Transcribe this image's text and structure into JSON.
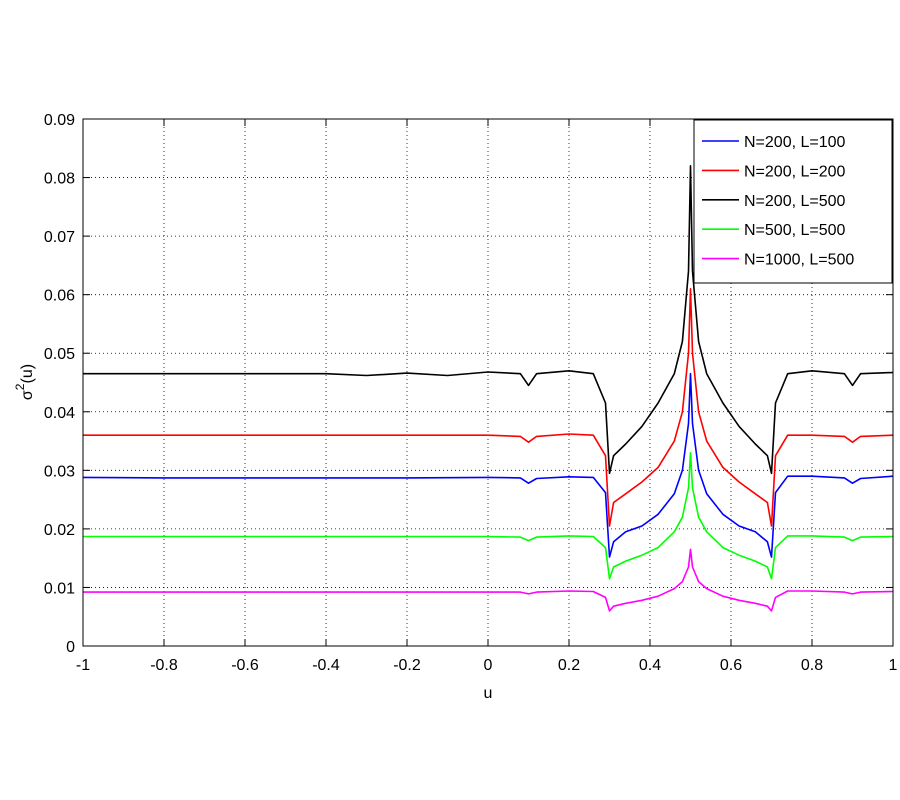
{
  "chart_data": {
    "type": "line",
    "xlabel": "u",
    "ylabel_base": "σ",
    "ylabel_sup": "2",
    "ylabel_rest": "(u)",
    "xlim": [
      -1,
      1
    ],
    "ylim": [
      0,
      0.09
    ],
    "grid": true,
    "legend_position": "top-right",
    "x_ticks": [
      "-1",
      "-0.8",
      "-0.6",
      "-0.4",
      "-0.2",
      "0",
      "0.2",
      "0.4",
      "0.6",
      "0.8",
      "1"
    ],
    "y_ticks": [
      "0",
      "0.01",
      "0.02",
      "0.03",
      "0.04",
      "0.05",
      "0.06",
      "0.07",
      "0.08",
      "0.09"
    ],
    "series": [
      {
        "name": "N=200, L=100",
        "color": "#0000ff",
        "x": [
          -1,
          -0.8,
          -0.6,
          -0.4,
          -0.2,
          0,
          0.08,
          0.1,
          0.12,
          0.2,
          0.26,
          0.29,
          0.3,
          0.31,
          0.34,
          0.38,
          0.42,
          0.46,
          0.48,
          0.495,
          0.5,
          0.505,
          0.52,
          0.54,
          0.58,
          0.62,
          0.66,
          0.69,
          0.7,
          0.71,
          0.74,
          0.8,
          0.88,
          0.9,
          0.92,
          1
        ],
        "y": [
          0.0288,
          0.0287,
          0.0287,
          0.0287,
          0.0287,
          0.0288,
          0.0287,
          0.0278,
          0.0286,
          0.0289,
          0.0288,
          0.0262,
          0.0152,
          0.0178,
          0.0195,
          0.0205,
          0.0225,
          0.026,
          0.03,
          0.038,
          0.0465,
          0.038,
          0.03,
          0.026,
          0.0225,
          0.0205,
          0.0195,
          0.0178,
          0.0152,
          0.0262,
          0.029,
          0.029,
          0.0287,
          0.0278,
          0.0286,
          0.029
        ]
      },
      {
        "name": "N=200, L=200",
        "color": "#ff0000",
        "x": [
          -1,
          -0.8,
          -0.6,
          -0.4,
          -0.2,
          0,
          0.08,
          0.1,
          0.12,
          0.2,
          0.26,
          0.29,
          0.3,
          0.31,
          0.34,
          0.38,
          0.42,
          0.46,
          0.48,
          0.495,
          0.5,
          0.505,
          0.52,
          0.54,
          0.58,
          0.62,
          0.66,
          0.69,
          0.7,
          0.71,
          0.74,
          0.8,
          0.88,
          0.9,
          0.92,
          1
        ],
        "y": [
          0.036,
          0.036,
          0.036,
          0.036,
          0.036,
          0.036,
          0.0358,
          0.0348,
          0.0358,
          0.0362,
          0.036,
          0.0325,
          0.0205,
          0.0245,
          0.026,
          0.028,
          0.0305,
          0.035,
          0.04,
          0.05,
          0.061,
          0.05,
          0.04,
          0.035,
          0.0305,
          0.028,
          0.026,
          0.0245,
          0.0205,
          0.0325,
          0.036,
          0.036,
          0.0358,
          0.0348,
          0.0358,
          0.036
        ]
      },
      {
        "name": "N=200, L=500",
        "color": "#000000",
        "x": [
          -1,
          -0.8,
          -0.6,
          -0.4,
          -0.3,
          -0.2,
          -0.1,
          0,
          0.08,
          0.1,
          0.12,
          0.2,
          0.26,
          0.29,
          0.3,
          0.31,
          0.34,
          0.38,
          0.42,
          0.46,
          0.48,
          0.495,
          0.5,
          0.505,
          0.52,
          0.54,
          0.58,
          0.62,
          0.66,
          0.69,
          0.7,
          0.71,
          0.74,
          0.8,
          0.88,
          0.9,
          0.92,
          1
        ],
        "y": [
          0.0465,
          0.0465,
          0.0465,
          0.0465,
          0.0462,
          0.0466,
          0.0462,
          0.0468,
          0.0465,
          0.0445,
          0.0465,
          0.047,
          0.0465,
          0.0415,
          0.0295,
          0.0325,
          0.0345,
          0.0375,
          0.0415,
          0.0465,
          0.052,
          0.064,
          0.082,
          0.064,
          0.052,
          0.0465,
          0.0415,
          0.0375,
          0.0345,
          0.0325,
          0.0295,
          0.0415,
          0.0465,
          0.047,
          0.0465,
          0.0445,
          0.0465,
          0.0467
        ]
      },
      {
        "name": "N=500, L=500",
        "color": "#00ff00",
        "x": [
          -1,
          -0.8,
          -0.6,
          -0.4,
          -0.2,
          0,
          0.08,
          0.1,
          0.12,
          0.2,
          0.26,
          0.29,
          0.3,
          0.31,
          0.34,
          0.38,
          0.42,
          0.46,
          0.48,
          0.495,
          0.5,
          0.505,
          0.52,
          0.54,
          0.58,
          0.62,
          0.66,
          0.69,
          0.7,
          0.71,
          0.74,
          0.8,
          0.88,
          0.9,
          0.92,
          1
        ],
        "y": [
          0.0187,
          0.0187,
          0.0187,
          0.0187,
          0.0187,
          0.0187,
          0.0186,
          0.018,
          0.0186,
          0.0188,
          0.0187,
          0.0168,
          0.0115,
          0.0135,
          0.0145,
          0.0155,
          0.0168,
          0.0195,
          0.022,
          0.027,
          0.033,
          0.027,
          0.022,
          0.0195,
          0.0168,
          0.0155,
          0.0145,
          0.0135,
          0.0115,
          0.0168,
          0.0188,
          0.0188,
          0.0186,
          0.018,
          0.0186,
          0.0187
        ]
      },
      {
        "name": "N=1000, L=500",
        "color": "#ff00ff",
        "x": [
          -1,
          -0.8,
          -0.6,
          -0.4,
          -0.2,
          0,
          0.08,
          0.1,
          0.12,
          0.2,
          0.26,
          0.29,
          0.3,
          0.31,
          0.34,
          0.38,
          0.42,
          0.46,
          0.48,
          0.495,
          0.5,
          0.505,
          0.52,
          0.54,
          0.58,
          0.62,
          0.66,
          0.69,
          0.7,
          0.71,
          0.74,
          0.8,
          0.88,
          0.9,
          0.92,
          1
        ],
        "y": [
          0.0092,
          0.0092,
          0.0092,
          0.0092,
          0.0092,
          0.0092,
          0.0092,
          0.0089,
          0.0092,
          0.0094,
          0.0093,
          0.0083,
          0.006,
          0.0068,
          0.0073,
          0.0078,
          0.0085,
          0.0098,
          0.011,
          0.0135,
          0.0165,
          0.0135,
          0.011,
          0.0098,
          0.0085,
          0.0078,
          0.0073,
          0.0068,
          0.006,
          0.0083,
          0.0094,
          0.0094,
          0.0092,
          0.0089,
          0.0092,
          0.0093
        ]
      }
    ]
  }
}
